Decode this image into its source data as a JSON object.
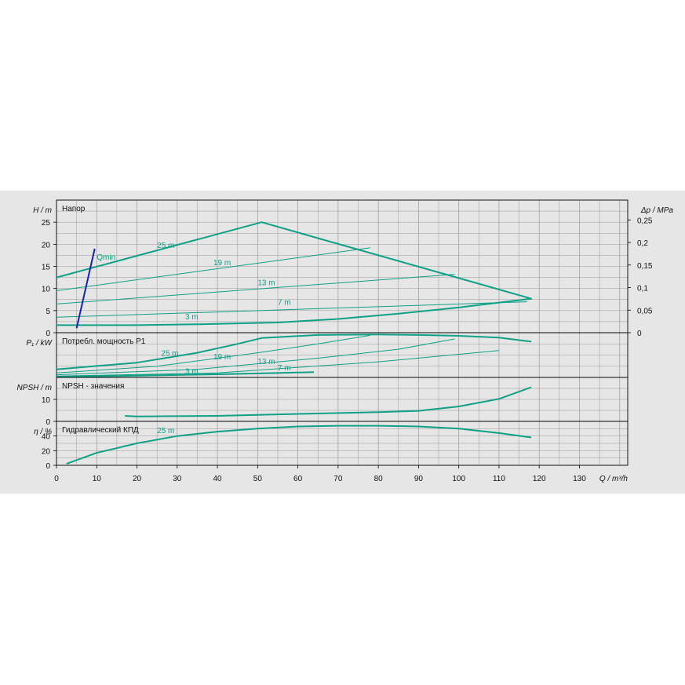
{
  "colors": {
    "background": "#e6e6e6",
    "grid": "#9a9a9a",
    "curve": "#10a088",
    "qmin": "#1520c0",
    "text": "#111111"
  },
  "chart_data": {
    "type": "line",
    "x_axis": {
      "label": "Q / m³/h",
      "ticks": [
        "0",
        "10",
        "20",
        "30",
        "40",
        "50",
        "60",
        "70",
        "80",
        "90",
        "100",
        "110",
        "120",
        "130"
      ],
      "range": [
        0,
        142
      ]
    },
    "panels": [
      {
        "id": "head",
        "title": "Напор",
        "ylabel": "H / m",
        "yticks": [
          "0",
          "5",
          "10",
          "15",
          "20",
          "25"
        ],
        "ylim": [
          0,
          30
        ],
        "right_axis": {
          "label": "Δp / MPa",
          "ticks": [
            "0",
            "0,05",
            "0,1",
            "0,15",
            "0,2",
            "0,25"
          ]
        },
        "series": [
          {
            "name": "25 m",
            "thick": true,
            "label_at": [
              25,
              19.2
            ],
            "x": [
              0,
              51,
              118,
              117.5
            ],
            "y": [
              12.5,
              25,
              7.7,
              7.7
            ]
          },
          {
            "name": "19 m",
            "thick": false,
            "label_at": [
              39,
              15.3
            ],
            "x": [
              0,
              78
            ],
            "y": [
              9.5,
              19.2
            ]
          },
          {
            "name": "13 m",
            "thick": false,
            "label_at": [
              50,
              10.7
            ],
            "x": [
              0,
              99
            ],
            "y": [
              6.5,
              13.2
            ]
          },
          {
            "name": "7 m",
            "thick": false,
            "label_at": [
              55,
              6.3
            ],
            "x": [
              0,
              117
            ],
            "y": [
              3.5,
              7.0
            ]
          },
          {
            "name": "3 m",
            "thick": true,
            "label_at": [
              32,
              3.0
            ],
            "x": [
              0,
              20,
              35,
              55,
              70,
              85,
              100,
              118
            ],
            "y": [
              1.7,
              1.7,
              1.9,
              2.3,
              3.1,
              4.3,
              5.7,
              7.7
            ]
          },
          {
            "name": "Qmin",
            "qmin": true,
            "label_at": [
              10,
              16.5
            ],
            "x": [
              5,
              9.5
            ],
            "y": [
              1,
              19
            ]
          }
        ]
      },
      {
        "id": "power",
        "title": "Потребл. мощность P1",
        "ylabel": "P₁ / kW",
        "yticks": [],
        "ylim": [
          0,
          1
        ],
        "series": [
          {
            "name": "25 m",
            "thick": true,
            "label_at": [
              26,
              0.48
            ],
            "x": [
              0,
              20,
              35,
              45,
              51,
              65,
              80,
              90,
              100,
              110,
              118
            ],
            "y": [
              0.18,
              0.33,
              0.55,
              0.75,
              0.88,
              0.95,
              0.96,
              0.95,
              0.93,
              0.89,
              0.8
            ]
          },
          {
            "name": "19 m",
            "thick": false,
            "label_at": [
              39,
              0.4
            ],
            "x": [
              0,
              25,
              50,
              65,
              78
            ],
            "y": [
              0.1,
              0.25,
              0.55,
              0.75,
              0.94
            ]
          },
          {
            "name": "13 m",
            "thick": false,
            "label_at": [
              50,
              0.3
            ],
            "x": [
              0,
              35,
              65,
              85,
              99
            ],
            "y": [
              0.06,
              0.18,
              0.43,
              0.63,
              0.86
            ]
          },
          {
            "name": "7 m",
            "thick": false,
            "label_at": [
              55,
              0.16
            ],
            "x": [
              0,
              40,
              80,
              110
            ],
            "y": [
              0.03,
              0.1,
              0.35,
              0.6
            ]
          },
          {
            "name": "3 m",
            "thick": true,
            "label_at": [
              32,
              0.08
            ],
            "x": [
              0,
              20,
              40,
              56,
              64
            ],
            "y": [
              0.01,
              0.04,
              0.07,
              0.1,
              0.12
            ]
          }
        ]
      },
      {
        "id": "npsh",
        "title": "NPSH - значения",
        "ylabel": "NPSH / m",
        "yticks": [
          "0",
          "10"
        ],
        "ylim": [
          0,
          20
        ],
        "series": [
          {
            "name": "",
            "thick": true,
            "x": [
              17,
              20,
              40,
              60,
              80,
              90,
              100,
              110,
              118
            ],
            "y": [
              2.5,
              2.2,
              2.5,
              3.4,
              4.2,
              4.8,
              6.8,
              10.2,
              15.5
            ]
          }
        ]
      },
      {
        "id": "efficiency",
        "title": "Гидравлический КПД",
        "ylabel": "η / %",
        "yticks": [
          "0",
          "20",
          "40"
        ],
        "ylim": [
          0,
          60
        ],
        "series": [
          {
            "name": "25 m",
            "thick": true,
            "label_at": [
              25,
              44
            ],
            "x": [
              2.5,
              10,
              20,
              30,
              40,
              50,
              60,
              70,
              80,
              90,
              100,
              110,
              118
            ],
            "y": [
              2,
              17,
              30,
              40,
              46,
              50,
              53,
              54,
              54,
              53,
              50,
              44,
              38
            ]
          }
        ]
      }
    ],
    "grid": true
  }
}
